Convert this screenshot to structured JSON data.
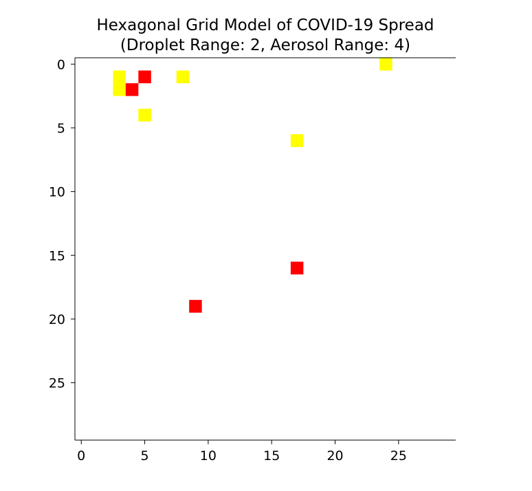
{
  "chart_data": {
    "type": "heatmap",
    "title": "Hexagonal Grid Model of COVID-19 Spread",
    "subtitle": "(Droplet Range: 2, Aerosol Range: 4)",
    "xlabel": "",
    "ylabel": "",
    "xlim": [
      -0.5,
      29.5
    ],
    "ylim": [
      29.5,
      -0.5
    ],
    "y_inverted": true,
    "grid": false,
    "x_ticks": [
      0,
      5,
      10,
      15,
      20,
      25
    ],
    "y_ticks": [
      0,
      5,
      10,
      15,
      20,
      25
    ],
    "background_color": "#ffffff",
    "series": [
      {
        "color": "#ffff00",
        "points": [
          {
            "x": 24,
            "y": 0
          },
          {
            "x": 3,
            "y": 1
          },
          {
            "x": 8,
            "y": 1
          },
          {
            "x": 3,
            "y": 2
          },
          {
            "x": 5,
            "y": 4
          },
          {
            "x": 17,
            "y": 6
          }
        ]
      },
      {
        "color": "#ff0000",
        "points": [
          {
            "x": 5,
            "y": 1
          },
          {
            "x": 4,
            "y": 2
          },
          {
            "x": 17,
            "y": 16
          },
          {
            "x": 9,
            "y": 19
          }
        ]
      }
    ]
  }
}
